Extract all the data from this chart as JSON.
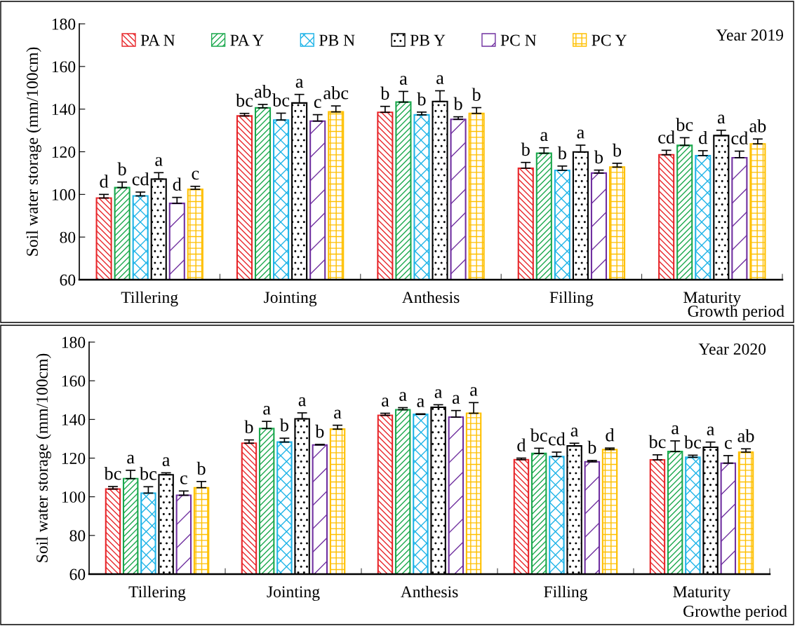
{
  "chart_data": [
    {
      "type": "bar",
      "ylabel": "Soil water storage (mm/100cm)",
      "xlabel": "Growth period",
      "annotations": [
        "Year 2019"
      ],
      "categories": [
        "Tillering",
        "Jointing",
        "Anthesis",
        "Filling",
        "Maturity"
      ],
      "ylim": [
        60,
        180
      ],
      "yticks": [
        60,
        80,
        100,
        120,
        140,
        160,
        180
      ],
      "grid": false,
      "legend": "top",
      "series": [
        {
          "name": "PA N",
          "color": "#e8262a",
          "values": [
            98.3,
            136.8,
            138.5,
            112.3,
            118.6
          ],
          "errors": [
            1.7,
            1.2,
            2.8,
            2.7,
            2.1
          ],
          "value_labels": [
            "d",
            "bc",
            "b",
            "b",
            "cd"
          ]
        },
        {
          "name": "PA Y",
          "color": "#1aa84c",
          "values": [
            103.2,
            140.6,
            143.3,
            119.3,
            123.0
          ],
          "errors": [
            2.6,
            1.6,
            5.0,
            2.6,
            3.6
          ],
          "value_labels": [
            "b",
            "ab",
            "a",
            "a",
            "bc"
          ]
        },
        {
          "name": "PB N",
          "color": "#1fb4e8",
          "values": [
            99.3,
            134.9,
            137.3,
            111.3,
            118.2
          ],
          "errors": [
            1.8,
            3.2,
            1.3,
            2.0,
            2.3
          ],
          "value_labels": [
            "cd",
            "bc",
            "b",
            "b",
            "d"
          ]
        },
        {
          "name": "PB Y",
          "color": "#000000",
          "values": [
            107.2,
            142.9,
            143.6,
            119.9,
            127.6
          ],
          "errors": [
            3.0,
            4.0,
            5.0,
            3.2,
            2.5
          ],
          "value_labels": [
            "a",
            "a",
            "a",
            "a",
            "a"
          ]
        },
        {
          "name": "PC N",
          "color": "#7030a0",
          "values": [
            95.8,
            134.4,
            135.2,
            110.0,
            117.2
          ],
          "errors": [
            2.8,
            3.0,
            1.2,
            1.4,
            3.1
          ],
          "value_labels": [
            "d",
            "c",
            "b",
            "b",
            "cd"
          ]
        },
        {
          "name": "PC Y",
          "color": "#ffc000",
          "values": [
            102.4,
            138.7,
            138.0,
            112.8,
            123.7
          ],
          "errors": [
            1.4,
            2.8,
            2.7,
            1.8,
            2.3
          ],
          "value_labels": [
            "c",
            "abc",
            "b",
            "b",
            "ab"
          ]
        }
      ]
    },
    {
      "type": "bar",
      "ylabel": "Soil water storage (mm/100cm)",
      "xlabel": "Growthe period",
      "annotations": [
        "Year 2020"
      ],
      "categories": [
        "Tillering",
        "Jointing",
        "Anthesis",
        "Filling",
        "Maturity"
      ],
      "ylim": [
        60,
        180
      ],
      "yticks": [
        60,
        80,
        100,
        120,
        140,
        160,
        180
      ],
      "grid": false,
      "legend": false,
      "series": [
        {
          "color": "#e8262a",
          "values": [
            104.0,
            127.7,
            142.1,
            119.2,
            119.1
          ],
          "errors": [
            1.3,
            1.7,
            1.1,
            0.8,
            2.6
          ],
          "value_labels": [
            "bc",
            "b",
            "a",
            "d",
            "bc"
          ]
        },
        {
          "color": "#1aa84c",
          "values": [
            109.4,
            135.3,
            145.0,
            122.4,
            123.4
          ],
          "errors": [
            4.3,
            3.7,
            1.1,
            2.7,
            5.5
          ],
          "value_labels": [
            "a",
            "a",
            "a",
            "bc",
            "a"
          ]
        },
        {
          "color": "#1fb4e8",
          "values": [
            101.9,
            128.3,
            142.6,
            120.8,
            120.4
          ],
          "errors": [
            3.3,
            2.0,
            0.3,
            2.3,
            1.1
          ],
          "value_labels": [
            "bc",
            "b",
            "a",
            "cd",
            "bc"
          ]
        },
        {
          "color": "#000000",
          "values": [
            111.4,
            140.3,
            146.3,
            126.3,
            125.6
          ],
          "errors": [
            1.0,
            3.1,
            1.3,
            1.4,
            2.7
          ],
          "value_labels": [
            "a",
            "a",
            "a",
            "a",
            "a"
          ]
        },
        {
          "color": "#7030a0",
          "values": [
            100.8,
            126.8,
            141.2,
            118.1,
            117.4
          ],
          "errors": [
            2.2,
            0.3,
            3.4,
            0.7,
            3.9
          ],
          "value_labels": [
            "c",
            "b",
            "a",
            "b",
            "c"
          ]
        },
        {
          "color": "#ffc000",
          "values": [
            104.7,
            135.0,
            143.2,
            124.4,
            123.1
          ],
          "errors": [
            3.2,
            2.0,
            5.5,
            0.8,
            1.7
          ],
          "value_labels": [
            "b",
            "a",
            "a",
            "d",
            "ab"
          ]
        }
      ]
    }
  ]
}
